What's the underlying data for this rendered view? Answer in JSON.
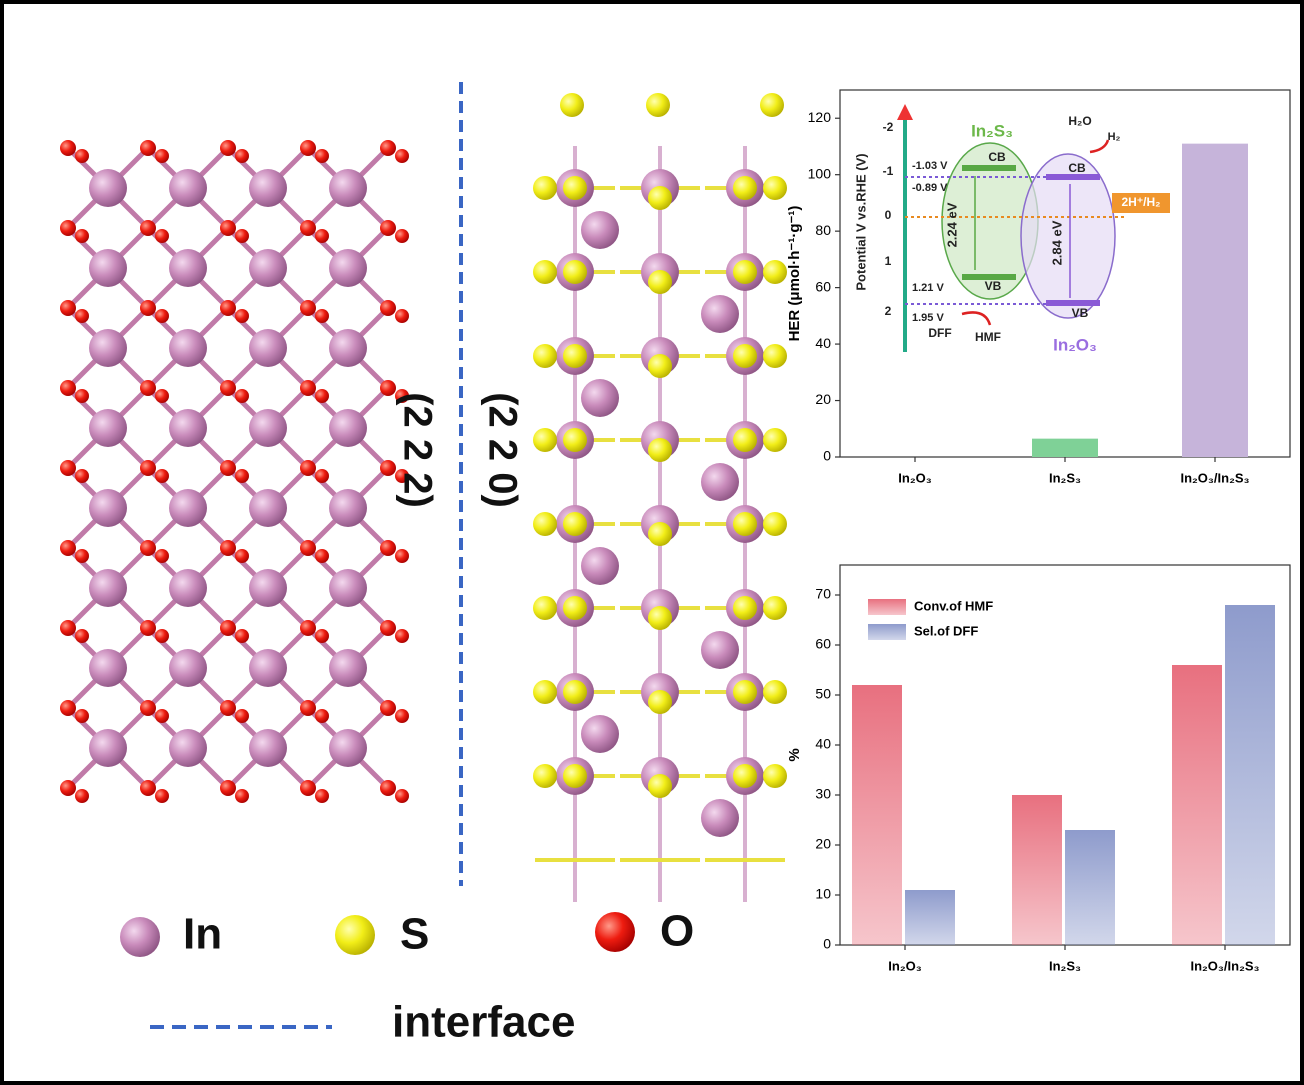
{
  "chart_data": [
    {
      "type": "bar",
      "y_label": "HER (μmol·h⁻¹·g⁻¹)",
      "categories": [
        "In₂O₃",
        "In₂S₃",
        "In₂O₃/In₂S₃"
      ],
      "values": [
        0,
        6.5,
        111
      ],
      "colors": [
        "#7fd197",
        "#7fd197",
        "#c6b4da"
      ],
      "ylim": [
        0,
        130
      ],
      "yticks": [
        0,
        20,
        40,
        60,
        80,
        100,
        120
      ]
    },
    {
      "type": "grouped_bar",
      "y_label": "%",
      "categories": [
        "In₂O₃",
        "In₂S₃",
        "In₂O₃/In₂S₃"
      ],
      "series": [
        {
          "name": "Conv.of HMF",
          "color": "#e8707f",
          "values": [
            52,
            30,
            56
          ]
        },
        {
          "name": "Sel.of DFF",
          "color": "#8e9bcc",
          "values": [
            11,
            23,
            68
          ]
        }
      ],
      "ylim": [
        0,
        76
      ],
      "yticks": [
        0,
        10,
        20,
        30,
        40,
        50,
        60,
        70
      ],
      "legend": "top-left"
    }
  ],
  "structure": {
    "left_plane": "(2 2 2)",
    "right_plane": "(2 2 0)",
    "legend": [
      "In",
      "S",
      "O"
    ],
    "interface_label": "interface"
  },
  "inset": {
    "axis_label": "Potential V vs.RHE (V)",
    "axis_ticks": [
      "-2",
      "-1",
      "0",
      "1",
      "2"
    ],
    "left_material": "In₂S₃",
    "right_material": "In₂O₃",
    "cb": "CB",
    "vb": "VB",
    "potentials": [
      "-1.03 V",
      "-0.89 V",
      "1.21 V",
      "1.95 V"
    ],
    "gaps": [
      "2.24 eV",
      "2.84 eV"
    ],
    "h2o": "H₂O",
    "h2": "H₂",
    "couple": "2H⁺/H₂",
    "dff": "DFF",
    "hmf": "HMF"
  }
}
